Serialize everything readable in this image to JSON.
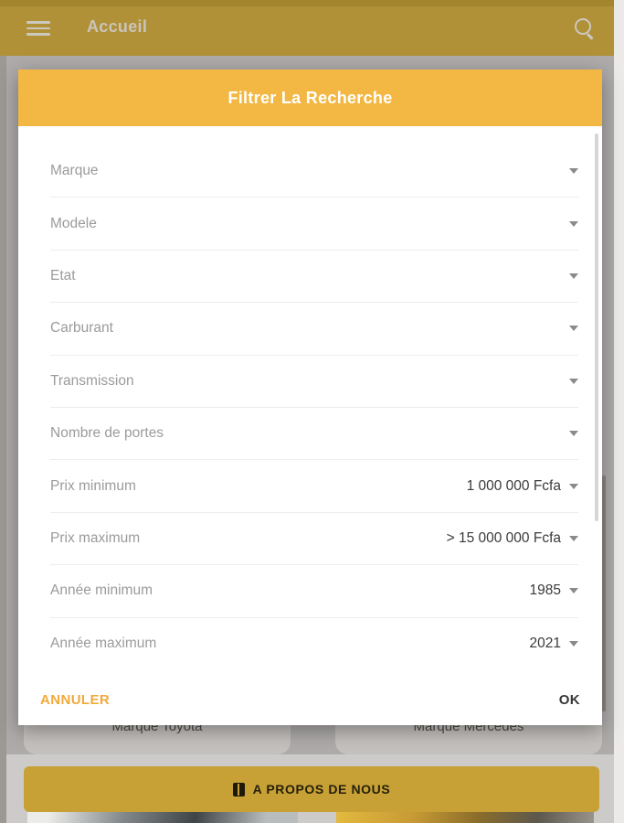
{
  "appbar": {
    "title": "Accueil"
  },
  "dialog": {
    "title": "Filtrer La Recherche",
    "rows": [
      {
        "label": "Marque",
        "value": ""
      },
      {
        "label": "Modele",
        "value": ""
      },
      {
        "label": "Etat",
        "value": ""
      },
      {
        "label": "Carburant",
        "value": ""
      },
      {
        "label": "Transmission",
        "value": ""
      },
      {
        "label": "Nombre de portes",
        "value": ""
      },
      {
        "label": "Prix minimum",
        "value": "1 000 000 Fcfa"
      },
      {
        "label": "Prix maximum",
        "value": "> 15 000 000 Fcfa"
      },
      {
        "label": "Année minimum",
        "value": "1985"
      },
      {
        "label": "Année maximum",
        "value": "2021"
      }
    ],
    "cancel_label": "ANNULER",
    "ok_label": "OK"
  },
  "background": {
    "card_left_label": "Marque Toyota",
    "card_right_label": "Marque Mercedes",
    "about_label": "A PROPOS DE NOUS"
  },
  "icons": {
    "menu": "hamburger-icon",
    "search": "search-icon",
    "about": "book-icon",
    "dropdown": "caret-down-icon"
  },
  "colors": {
    "dialog_header_gold": "#f2b843",
    "appbar_dimmed_gold": "#b19137",
    "about_bar_gold": "#c8a136",
    "cancel_accent": "#f2a93b",
    "overlay_gray": "#aeabaa"
  }
}
